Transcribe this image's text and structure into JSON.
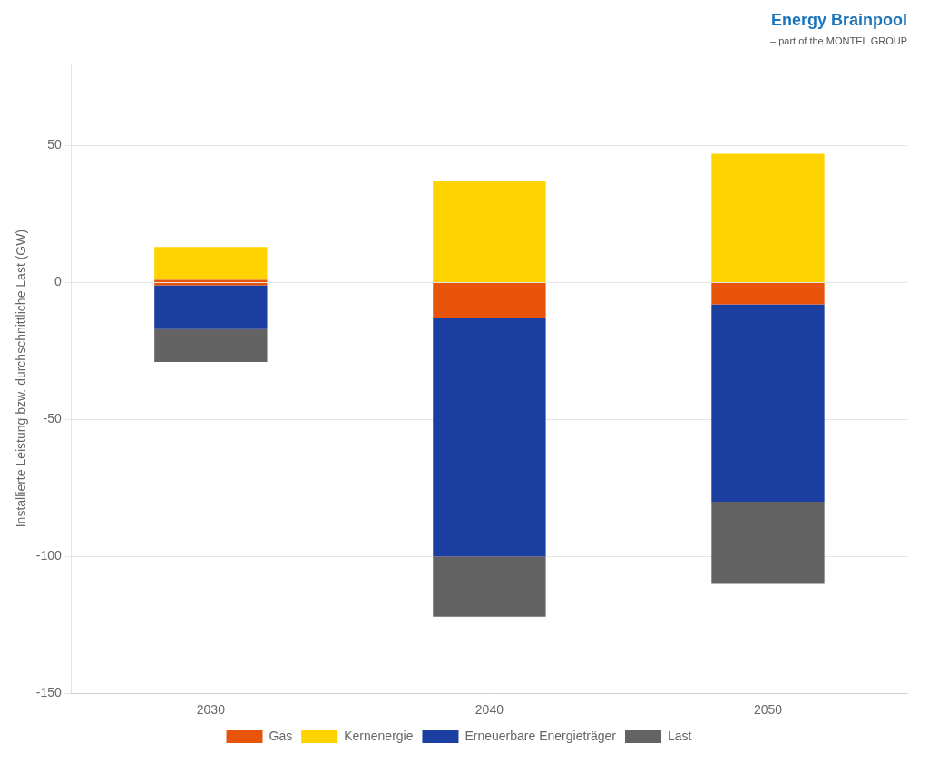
{
  "chart_data": {
    "type": "bar",
    "stacked": true,
    "categories": [
      "2030",
      "2040",
      "2050"
    ],
    "series": [
      {
        "name": "Gas",
        "color": "#E8550A",
        "values": [
          1,
          0,
          0
        ]
      },
      {
        "name": "Kernenergie",
        "color": "#FFD300",
        "values": [
          12,
          37,
          47
        ]
      },
      {
        "name": "Gas",
        "color": "#E8550A",
        "values": [
          -1,
          -13,
          -8
        ]
      },
      {
        "name": "Erneuerbare Energieträger",
        "color": "#1B3FA0",
        "values": [
          -16,
          -87,
          -72
        ]
      },
      {
        "name": "Last",
        "color": "#636363",
        "values": [
          -12,
          -22,
          -30
        ]
      }
    ],
    "ylabel": "Installierte Leistung bzw. durchschnittliche Last (GW)",
    "ylim": [
      -150,
      80
    ],
    "yticks": [
      -150,
      -100,
      -50,
      0,
      50
    ],
    "grid": "y",
    "legend": "bottom",
    "annotations": [
      "Energy Brainpool",
      "– part of the MONTEL GROUP"
    ]
  }
}
